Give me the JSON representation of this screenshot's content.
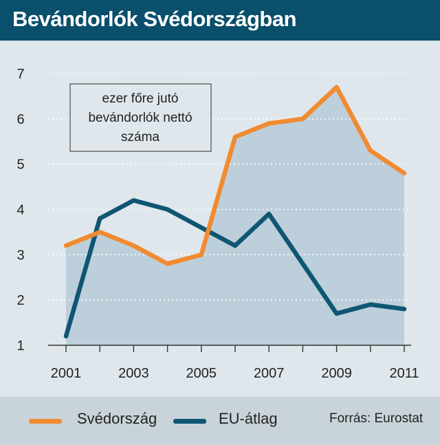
{
  "header": {
    "title": "Bevándorlók Svédországban"
  },
  "annotation": {
    "lines": [
      "ezer főre jutó",
      "bevándorlók nettó",
      "száma"
    ]
  },
  "footer": {
    "legend": [
      {
        "name": "Svédország",
        "color": "#f28a30"
      },
      {
        "name": "EU-átlag",
        "color": "#0f5673"
      }
    ],
    "source": "Forrás: Eurostat"
  },
  "chart_data": {
    "type": "line",
    "title": "Bevándorlók Svédországban",
    "xlabel": "",
    "ylabel": "",
    "x": [
      2001,
      2002,
      2003,
      2004,
      2005,
      2006,
      2007,
      2008,
      2009,
      2010,
      2011
    ],
    "x_tick_labels": [
      "2001",
      "2003",
      "2005",
      "2007",
      "2009",
      "2011"
    ],
    "y_tick_labels": [
      "1",
      "2",
      "3",
      "4",
      "5",
      "6",
      "7"
    ],
    "ylim": [
      1,
      7
    ],
    "xlim": [
      2001,
      2011
    ],
    "grid": "horizontal-dotted",
    "legend_position": "bottom",
    "series": [
      {
        "name": "Svédország",
        "color": "#f28a30",
        "area_fill": "#bccfda",
        "values": [
          3.2,
          3.5,
          3.2,
          2.8,
          3.0,
          5.6,
          5.9,
          6.0,
          6.7,
          5.3,
          4.8
        ]
      },
      {
        "name": "EU-átlag",
        "color": "#0f5673",
        "values": [
          1.2,
          3.8,
          4.2,
          4.0,
          3.6,
          3.2,
          3.9,
          2.8,
          1.7,
          1.9,
          1.8
        ]
      }
    ]
  }
}
